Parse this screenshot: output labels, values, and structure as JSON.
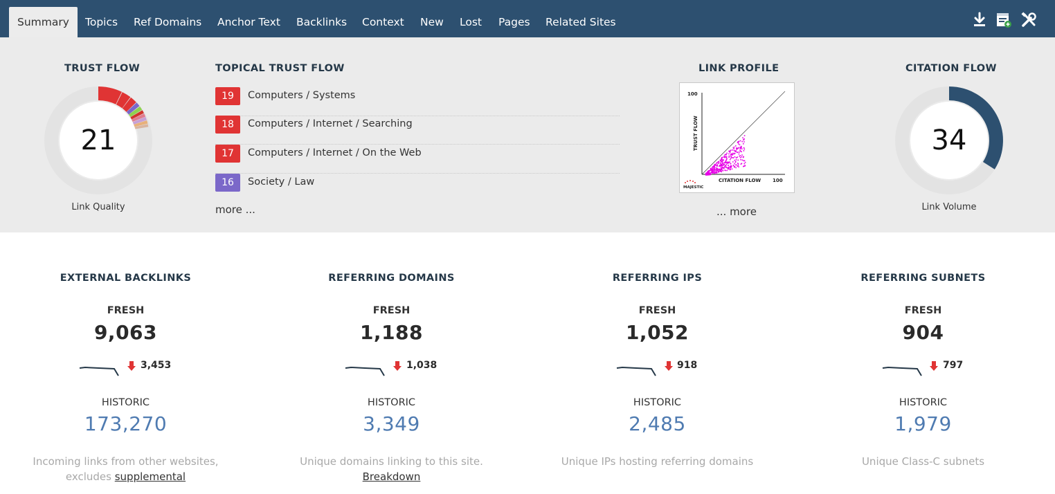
{
  "nav": {
    "tabs": [
      {
        "label": "Summary"
      },
      {
        "label": "Topics"
      },
      {
        "label": "Ref Domains"
      },
      {
        "label": "Anchor Text"
      },
      {
        "label": "Backlinks"
      },
      {
        "label": "Context"
      },
      {
        "label": "New"
      },
      {
        "label": "Lost"
      },
      {
        "label": "Pages"
      },
      {
        "label": "Related Sites"
      }
    ],
    "active_tab": "Summary",
    "icons": [
      "download-icon",
      "report-add-icon",
      "tools-icon"
    ]
  },
  "trust_flow": {
    "title": "TRUST FLOW",
    "value": "21",
    "caption": "Link Quality"
  },
  "topical_trust_flow": {
    "title": "TOPICAL TRUST FLOW",
    "items": [
      {
        "score": "19",
        "label": "Computers / Systems",
        "color": "#e03434"
      },
      {
        "score": "18",
        "label": "Computers / Internet / Searching",
        "color": "#e03434"
      },
      {
        "score": "17",
        "label": "Computers / Internet / On the Web",
        "color": "#e03434"
      },
      {
        "score": "16",
        "label": "Society / Law",
        "color": "#7b68c9"
      }
    ],
    "more_label": "more ..."
  },
  "link_profile": {
    "title": "LINK PROFILE",
    "more_label": "... more",
    "chart_data": {
      "type": "scatter",
      "xlabel": "CITATION FLOW",
      "ylabel": "TRUST FLOW",
      "xlim": [
        0,
        100
      ],
      "ylim": [
        0,
        100
      ],
      "x_tick_label": "100",
      "y_tick_label": "100",
      "logo_text": "MAJESTIC",
      "point_color": "#e600e6"
    }
  },
  "citation_flow": {
    "title": "CITATION FLOW",
    "value": "34",
    "caption": "Link Volume",
    "fill_fraction": 0.34,
    "color": "#2d5070"
  },
  "stats": [
    {
      "title": "EXTERNAL BACKLINKS",
      "fresh_label": "FRESH",
      "fresh_value": "9,063",
      "lost_value": "3,453",
      "historic_label": "HISTORIC",
      "historic_value": "173,270",
      "desc_line1": "Incoming links from other websites,",
      "desc_line2_prefix": "excludes ",
      "desc_link": "supplemental"
    },
    {
      "title": "REFERRING DOMAINS",
      "fresh_label": "FRESH",
      "fresh_value": "1,188",
      "lost_value": "1,038",
      "historic_label": "HISTORIC",
      "historic_value": "3,349",
      "desc_line1": "Unique domains linking to this site.",
      "desc_line2_prefix": "",
      "desc_link": "Breakdown"
    },
    {
      "title": "REFERRING IPS",
      "fresh_label": "FRESH",
      "fresh_value": "1,052",
      "lost_value": "918",
      "historic_label": "HISTORIC",
      "historic_value": "2,485",
      "desc_line1": "Unique IPs hosting referring domains",
      "desc_line2_prefix": "",
      "desc_link": ""
    },
    {
      "title": "REFERRING SUBNETS",
      "fresh_label": "FRESH",
      "fresh_value": "904",
      "lost_value": "797",
      "historic_label": "HISTORIC",
      "historic_value": "1,979",
      "desc_line1": "Unique Class-C subnets",
      "desc_line2_prefix": "",
      "desc_link": ""
    }
  ]
}
